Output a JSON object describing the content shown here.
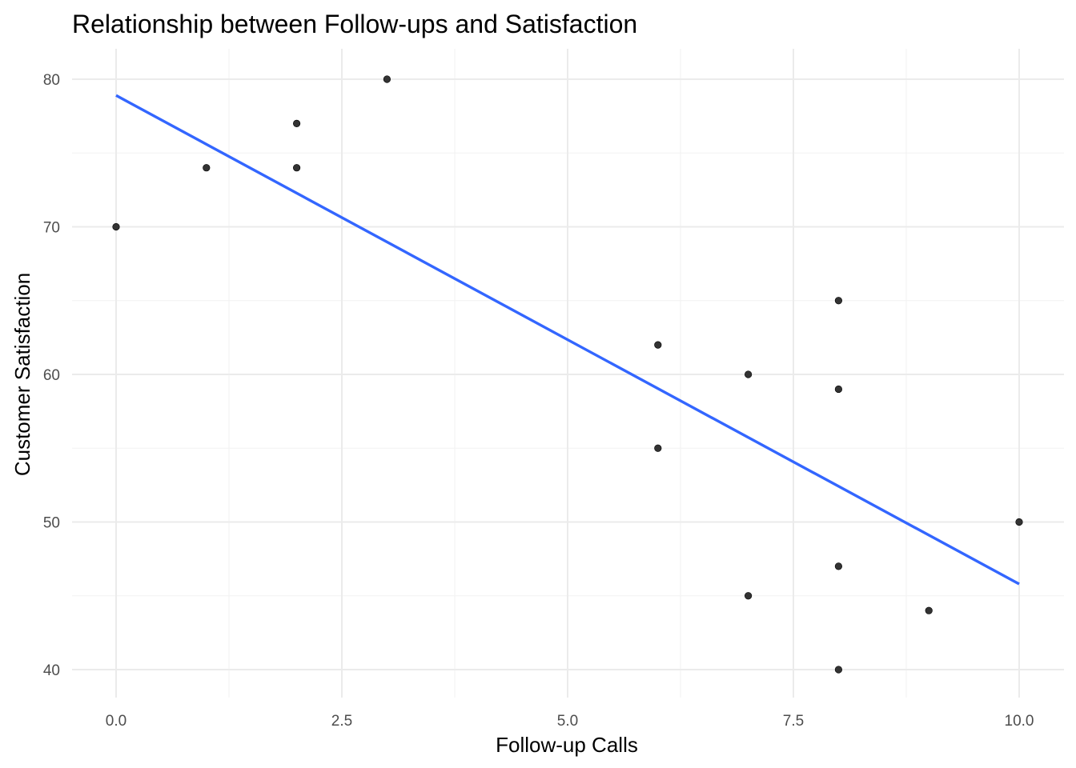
{
  "chart_data": {
    "type": "scatter",
    "title": "Relationship between Follow-ups and Satisfaction",
    "xlabel": "Follow-up Calls",
    "ylabel": "Customer Satisfaction",
    "xlim": [
      -0.5,
      10.5
    ],
    "ylim": [
      38.3,
      82
    ],
    "x_ticks": [
      0,
      2.5,
      5,
      7.5,
      10
    ],
    "x_tick_labels": [
      "0.0",
      "2.5",
      "5.0",
      "7.5",
      "10.0"
    ],
    "x_minor": [
      1.25,
      3.75,
      6.25,
      8.75
    ],
    "y_ticks": [
      40,
      50,
      60,
      70,
      80
    ],
    "y_tick_labels": [
      "40",
      "50",
      "60",
      "70",
      "80"
    ],
    "y_minor": [
      45,
      55,
      65,
      75
    ],
    "grid": true,
    "points": [
      {
        "x": 0,
        "y": 70
      },
      {
        "x": 1,
        "y": 74
      },
      {
        "x": 2,
        "y": 77
      },
      {
        "x": 2,
        "y": 74
      },
      {
        "x": 3,
        "y": 80
      },
      {
        "x": 6,
        "y": 62
      },
      {
        "x": 6,
        "y": 55
      },
      {
        "x": 7,
        "y": 60
      },
      {
        "x": 7,
        "y": 45
      },
      {
        "x": 8,
        "y": 65
      },
      {
        "x": 8,
        "y": 59
      },
      {
        "x": 8,
        "y": 47
      },
      {
        "x": 8,
        "y": 40
      },
      {
        "x": 9,
        "y": 44
      },
      {
        "x": 10,
        "y": 50
      }
    ],
    "trend_line": {
      "x": [
        0,
        10
      ],
      "y": [
        78.9,
        45.8
      ]
    },
    "colors": {
      "point": "#333333",
      "trend": "#3366ff",
      "grid_major": "#ebebeb",
      "grid_minor": "#f2f2f2"
    }
  }
}
